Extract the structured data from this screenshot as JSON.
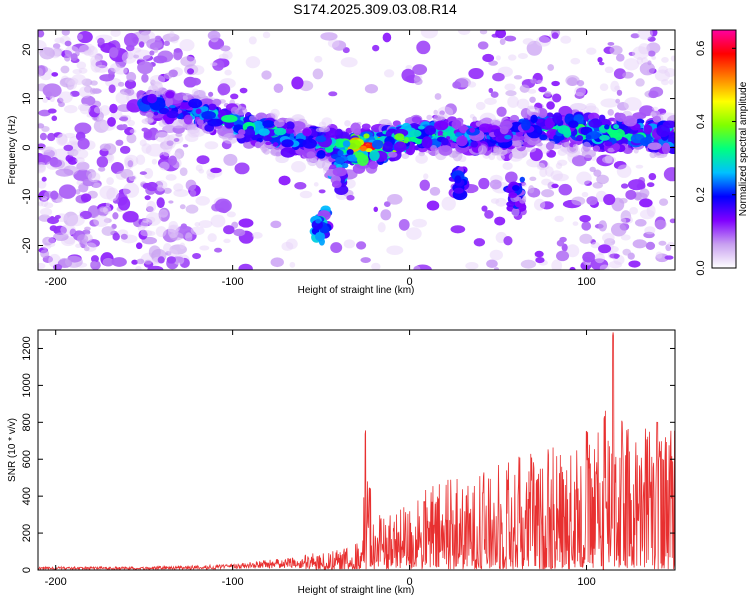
{
  "title": "S174.2025.309.03.08.R14",
  "chart_data": [
    {
      "type": "heatmap",
      "xlabel": "Height of straight line (km)",
      "ylabel": "Frequency (Hz)",
      "xlim": [
        -210,
        150
      ],
      "ylim": [
        -25,
        24
      ],
      "xticks": [
        -200,
        -100,
        0,
        100
      ],
      "yticks": [
        -20,
        -10,
        0,
        10,
        20
      ],
      "colorbar": {
        "label": "Normalized spectral amplitude",
        "range": [
          0,
          0.65
        ],
        "ticks": [
          "0.0",
          "0.2",
          "0.4",
          "0.6"
        ],
        "tick_values": [
          0,
          0.2,
          0.4,
          0.6
        ],
        "colormap": [
          "#ffffff",
          "#c8a0f0",
          "#8000ff",
          "#0000ff",
          "#00c0ff",
          "#00ff80",
          "#80ff00",
          "#ffff00",
          "#ff8000",
          "#ff0000",
          "#ff00a0"
        ]
      },
      "ridge_frequency_by_height": {
        "height": [
          -150,
          -130,
          -110,
          -90,
          -70,
          -55,
          -40,
          -25,
          -10,
          0,
          15,
          30,
          50,
          70,
          90,
          110,
          130,
          150
        ],
        "frequency": [
          9,
          8,
          6,
          4,
          2,
          1,
          0,
          0,
          1,
          2,
          3,
          2,
          2,
          4,
          4,
          3,
          3,
          2
        ],
        "amplitude": [
          0.2,
          0.22,
          0.28,
          0.3,
          0.3,
          0.25,
          0.3,
          0.6,
          0.4,
          0.35,
          0.3,
          0.25,
          0.2,
          0.25,
          0.3,
          0.32,
          0.3,
          0.3
        ]
      },
      "features": [
        {
          "height": -50,
          "frequency": -16,
          "amplitude": 0.3
        },
        {
          "height": -40,
          "frequency": -5,
          "amplitude": 0.25
        },
        {
          "height": 28,
          "frequency": -7,
          "amplitude": 0.2
        },
        {
          "height": 60,
          "frequency": -10,
          "amplitude": 0.2
        }
      ]
    },
    {
      "type": "line",
      "xlabel": "Height of straight line (km)",
      "ylabel": "SNR (10 * v/v)",
      "xlim": [
        -210,
        150
      ],
      "ylim": [
        0,
        1300
      ],
      "xticks": [
        -200,
        -100,
        0,
        100
      ],
      "yticks": [
        0,
        200,
        400,
        600,
        800,
        1000,
        1200
      ],
      "series": [
        {
          "color": "#e83030",
          "envelope": {
            "x": [
              -210,
              -150,
              -120,
              -100,
              -80,
              -60,
              -45,
              -35,
              -30,
              -27,
              -25,
              -20,
              -10,
              0,
              20,
              40,
              60,
              80,
              100,
              110,
              115,
              120,
              140,
              150
            ],
            "y": [
              25,
              25,
              35,
              45,
              80,
              100,
              110,
              120,
              150,
              180,
              770,
              280,
              350,
              420,
              500,
              580,
              640,
              700,
              750,
              820,
              1290,
              800,
              800,
              750
            ]
          }
        }
      ]
    }
  ]
}
